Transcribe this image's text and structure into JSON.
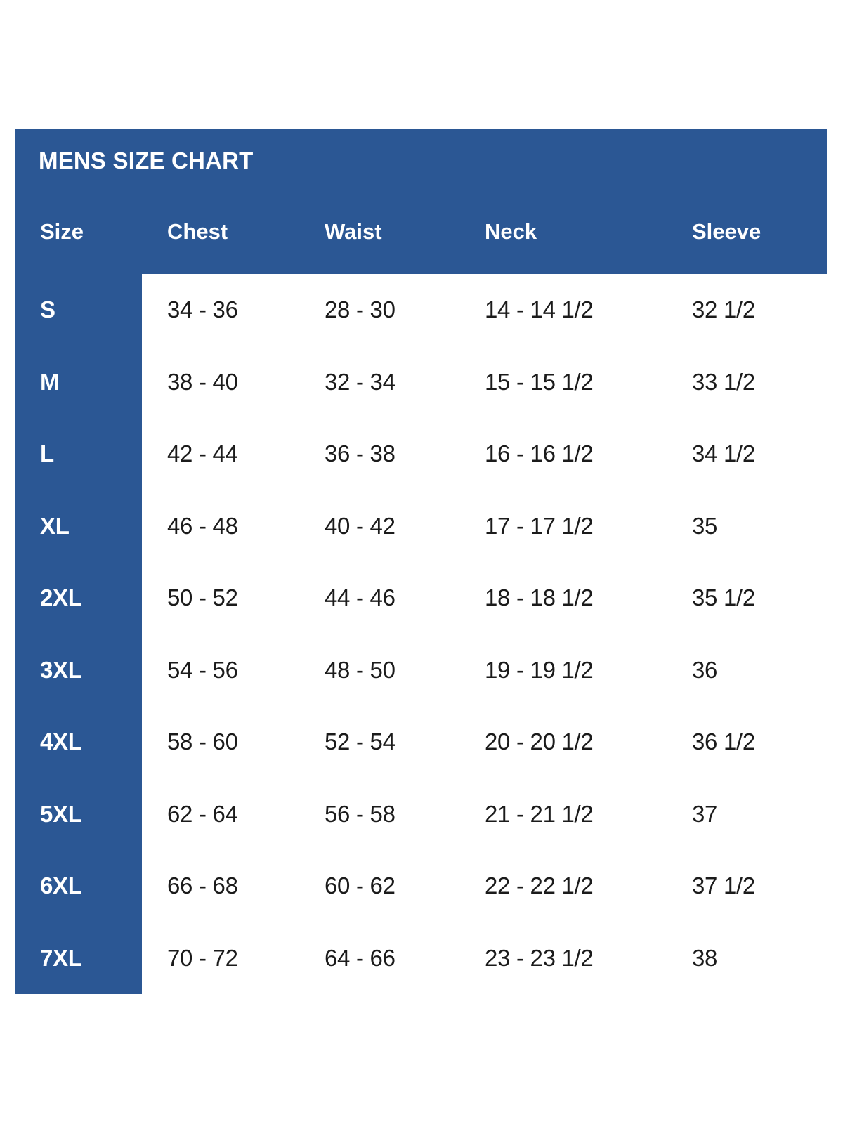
{
  "colors": {
    "panel_blue": "#2b5794",
    "header_text": "#ffffff",
    "body_text": "#1b1b1b",
    "page_background": "#ffffff"
  },
  "chart_data": {
    "type": "table",
    "title": "MENS SIZE CHART",
    "columns": [
      "Size",
      "Chest",
      "Waist",
      "Neck",
      "Sleeve"
    ],
    "rows": [
      {
        "size": "S",
        "chest": "34 - 36",
        "waist": "28 - 30",
        "neck": "14 - 14 1/2",
        "sleeve": "32 1/2"
      },
      {
        "size": "M",
        "chest": "38 - 40",
        "waist": "32 - 34",
        "neck": "15 - 15 1/2",
        "sleeve": "33 1/2"
      },
      {
        "size": "L",
        "chest": "42 - 44",
        "waist": "36 - 38",
        "neck": "16 - 16 1/2",
        "sleeve": "34 1/2"
      },
      {
        "size": "XL",
        "chest": "46 - 48",
        "waist": "40 - 42",
        "neck": "17 - 17 1/2",
        "sleeve": "35"
      },
      {
        "size": "2XL",
        "chest": "50 - 52",
        "waist": "44 - 46",
        "neck": "18 - 18 1/2",
        "sleeve": "35 1/2"
      },
      {
        "size": "3XL",
        "chest": "54 - 56",
        "waist": "48 - 50",
        "neck": "19 - 19 1/2",
        "sleeve": "36"
      },
      {
        "size": "4XL",
        "chest": "58 - 60",
        "waist": "52 - 54",
        "neck": "20 - 20 1/2",
        "sleeve": "36 1/2"
      },
      {
        "size": "5XL",
        "chest": "62 - 64",
        "waist": "56 - 58",
        "neck": "21 - 21 1/2",
        "sleeve": "37"
      },
      {
        "size": "6XL",
        "chest": "66 - 68",
        "waist": "60 - 62",
        "neck": "22 - 22 1/2",
        "sleeve": "37 1/2"
      },
      {
        "size": "7XL",
        "chest": "70 - 72",
        "waist": "64 - 66",
        "neck": "23 - 23 1/2",
        "sleeve": "38"
      }
    ],
    "layout": {
      "legend": "none",
      "grid": "off",
      "header_style": "blue-band",
      "size_column_style": "blue-column"
    }
  }
}
